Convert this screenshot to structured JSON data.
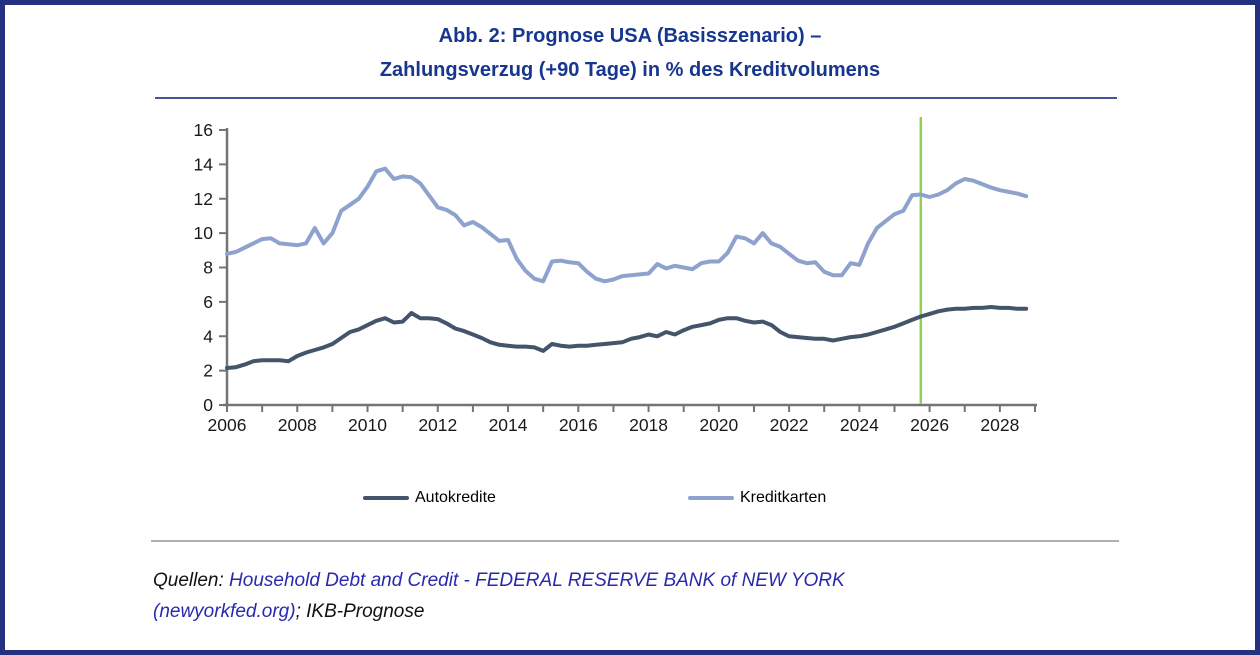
{
  "figure": {
    "title_line1": "Abb. 2: Prognose USA (Basisszenario) –",
    "title_line2": "Zahlungsverzug (+90 Tage) in % des Kreditvolumens",
    "title_color": "#17368f",
    "frame_border_color": "#233180"
  },
  "legend": {
    "items": [
      {
        "label": "Autokredite",
        "color": "#44546a"
      },
      {
        "label": "Kreditkarten",
        "color": "#8da2cc"
      }
    ]
  },
  "footer": {
    "prefix": "Quellen: ",
    "link_text_line1": "Household Debt and Credit - FEDERAL RESERVE BANK of NEW YORK",
    "link_text_line2": "(newyorkfed.org)",
    "suffix": "; IKB-Prognose",
    "link_color": "#2929ae"
  },
  "chart_data": {
    "type": "line",
    "title": "Abb. 2: Prognose USA (Basisszenario) – Zahlungsverzug (+90 Tage) in % des Kreditvolumens",
    "xlabel": "",
    "ylabel": "",
    "x_start": 2006.0,
    "x_step": 0.25,
    "x_axis_range": [
      2006,
      2029
    ],
    "ylim": [
      0,
      16
    ],
    "y_ticks": [
      0,
      2,
      4,
      6,
      8,
      10,
      12,
      14,
      16
    ],
    "x_tick_years": [
      2006,
      2007,
      2008,
      2009,
      2010,
      2011,
      2012,
      2013,
      2014,
      2015,
      2016,
      2017,
      2018,
      2019,
      2020,
      2021,
      2022,
      2023,
      2024,
      2025,
      2026,
      2027,
      2028,
      2029
    ],
    "x_tick_labels": [
      "2006",
      "2008",
      "2010",
      "2012",
      "2014",
      "2016",
      "2018",
      "2020",
      "2022",
      "2024",
      "2026",
      "2028"
    ],
    "grid": false,
    "legend_position": "bottom",
    "forecast_divider_x": 2025.75,
    "forecast_divider_color": "#92d050",
    "axis_color": "#747474",
    "series": [
      {
        "name": "Autokredite",
        "color": "#44546a",
        "values": [
          2.15,
          2.2,
          2.35,
          2.55,
          2.6,
          2.6,
          2.6,
          2.55,
          2.85,
          3.05,
          3.2,
          3.35,
          3.55,
          3.9,
          4.25,
          4.4,
          4.65,
          4.9,
          5.05,
          4.8,
          4.85,
          5.35,
          5.05,
          5.05,
          5.0,
          4.75,
          4.45,
          4.3,
          4.1,
          3.9,
          3.65,
          3.5,
          3.45,
          3.4,
          3.4,
          3.35,
          3.15,
          3.55,
          3.45,
          3.4,
          3.45,
          3.45,
          3.5,
          3.55,
          3.6,
          3.65,
          3.85,
          3.95,
          4.1,
          4.0,
          4.25,
          4.1,
          4.35,
          4.55,
          4.65,
          4.75,
          4.95,
          5.05,
          5.05,
          4.9,
          4.8,
          4.85,
          4.65,
          4.25,
          4.0,
          3.95,
          3.9,
          3.85,
          3.85,
          3.75,
          3.85,
          3.95,
          4.0,
          4.1,
          4.25,
          4.4,
          4.55,
          4.75,
          4.95,
          5.15,
          5.3,
          5.45,
          5.55,
          5.6,
          5.6,
          5.65,
          5.65,
          5.7,
          5.65,
          5.65,
          5.6,
          5.6
        ]
      },
      {
        "name": "Kreditkarten",
        "color": "#8da2cc",
        "values": [
          8.8,
          8.9,
          9.15,
          9.4,
          9.65,
          9.7,
          9.4,
          9.35,
          9.3,
          9.4,
          10.3,
          9.4,
          10.0,
          11.3,
          11.65,
          12.0,
          12.7,
          13.6,
          13.75,
          13.15,
          13.3,
          13.25,
          12.9,
          12.2,
          11.5,
          11.35,
          11.05,
          10.45,
          10.65,
          10.35,
          9.95,
          9.55,
          9.6,
          8.5,
          7.8,
          7.35,
          7.2,
          8.35,
          8.4,
          8.3,
          8.25,
          7.75,
          7.35,
          7.2,
          7.3,
          7.5,
          7.55,
          7.6,
          7.65,
          8.2,
          7.95,
          8.1,
          8.0,
          7.9,
          8.25,
          8.35,
          8.35,
          8.85,
          9.8,
          9.7,
          9.4,
          10.0,
          9.4,
          9.2,
          8.8,
          8.4,
          8.25,
          8.3,
          7.75,
          7.55,
          7.55,
          8.25,
          8.15,
          9.4,
          10.3,
          10.7,
          11.1,
          11.3,
          12.2,
          12.25,
          12.1,
          12.25,
          12.5,
          12.9,
          13.15,
          13.05,
          12.85,
          12.65,
          12.5,
          12.4,
          12.3,
          12.15
        ]
      }
    ]
  }
}
